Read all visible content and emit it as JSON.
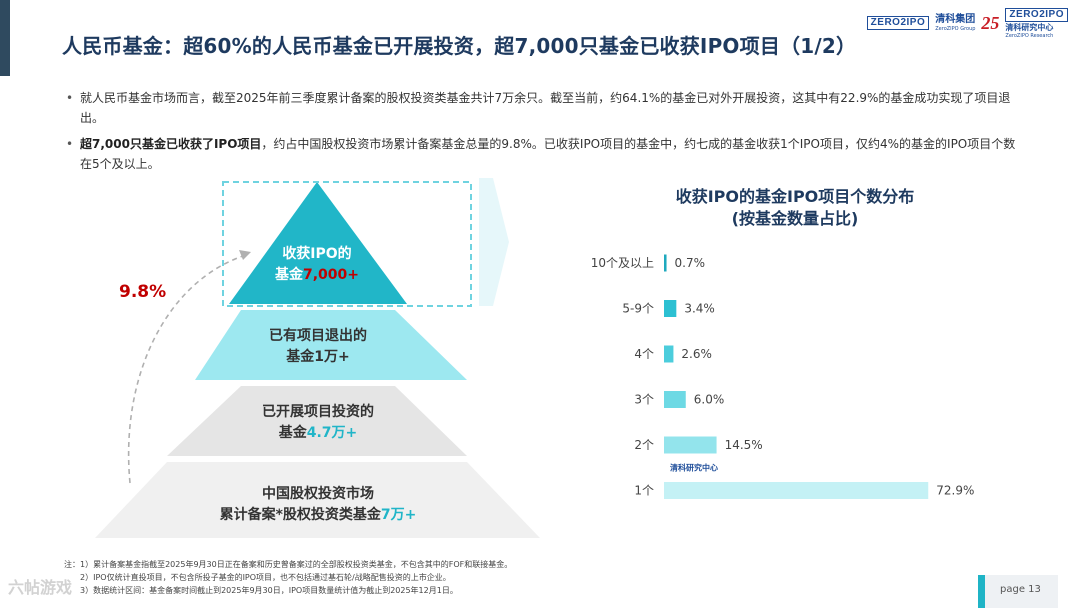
{
  "title": "人民币基金：超60%的人民币基金已开展投资，超7,000只基金已收获IPO项目（1/2）",
  "logos": {
    "zero_word": "ZERO2IPO",
    "zero_sub": "清科集团",
    "group_name": "清科集团",
    "group_sub": "ZeroZIPO Group",
    "anniv": "25",
    "research_name": "清科研究中心",
    "research_sub": "ZeroZIPO Research"
  },
  "bullets": [
    {
      "bold": "",
      "text": "就人民币基金市场而言，截至2025年前三季度累计备案的股权投资类基金共计7万余只。截至当前，约64.1%的基金已对外开展投资，这其中有22.9%的基金成功实现了项目退出。"
    },
    {
      "bold": "超7,000只基金已收获了IPO项目",
      "text": "，约占中国股权投资市场累计备案基金总量的9.8%。已收获IPO项目的基金中，约七成的基金收获1个IPO项目，仅约4%的基金的IPO项目个数在5个及以上。"
    }
  ],
  "pyramid": {
    "pct": "9.8%",
    "levels": [
      {
        "line1": "收获IPO的",
        "line2_prefix": "基金",
        "line2_value": "7,000+"
      },
      {
        "line1": "已有项目退出的",
        "line2_prefix": "基金",
        "line2_value": "1万+"
      },
      {
        "line1": "已开展项目投资的",
        "line2_prefix": "基金",
        "line2_value": "4.7万+"
      },
      {
        "line1": "中国股权投资市场",
        "line2_prefix": "累计备案*股权投资类基金",
        "line2_value": "7万+"
      }
    ]
  },
  "chart_title_line1": "收获IPO的基金IPO项目个数分布",
  "chart_title_line2": "(按基金数量占比)",
  "chart_data": {
    "type": "bar",
    "orientation": "horizontal",
    "title": "收获IPO的基金IPO项目个数分布 (按基金数量占比)",
    "categories": [
      "10个及以上",
      "5-9个",
      "4个",
      "3个",
      "2个",
      "1个"
    ],
    "values": [
      0.7,
      3.4,
      2.6,
      6.0,
      14.5,
      72.9
    ],
    "value_labels": [
      "0.7%",
      "3.4%",
      "2.6%",
      "6.0%",
      "14.5%",
      "72.9%"
    ],
    "colors": [
      "#1fa9be",
      "#2cc0d2",
      "#4ccddc",
      "#6dd9e4",
      "#93e4ec",
      "#c4f1f5"
    ],
    "xlim": [
      0,
      80
    ]
  },
  "notes": [
    "注：1）累计备案基金指截至2025年9月30日正在备案和历史曾备案过的全部股权投资类基金，不包含其中的FOF和联接基金。",
    "2）IPO仅统计直投项目，不包含所投子基金的IPO项目，也不包括通过基石轮/战略配售投资的上市企业。",
    "3）数据统计区间：基金备案时间截止到2025年9月30日，IPO项目数量统计值为截止到2025年12月1日。"
  ],
  "page": "page  13",
  "watermark": "六帖游戏"
}
